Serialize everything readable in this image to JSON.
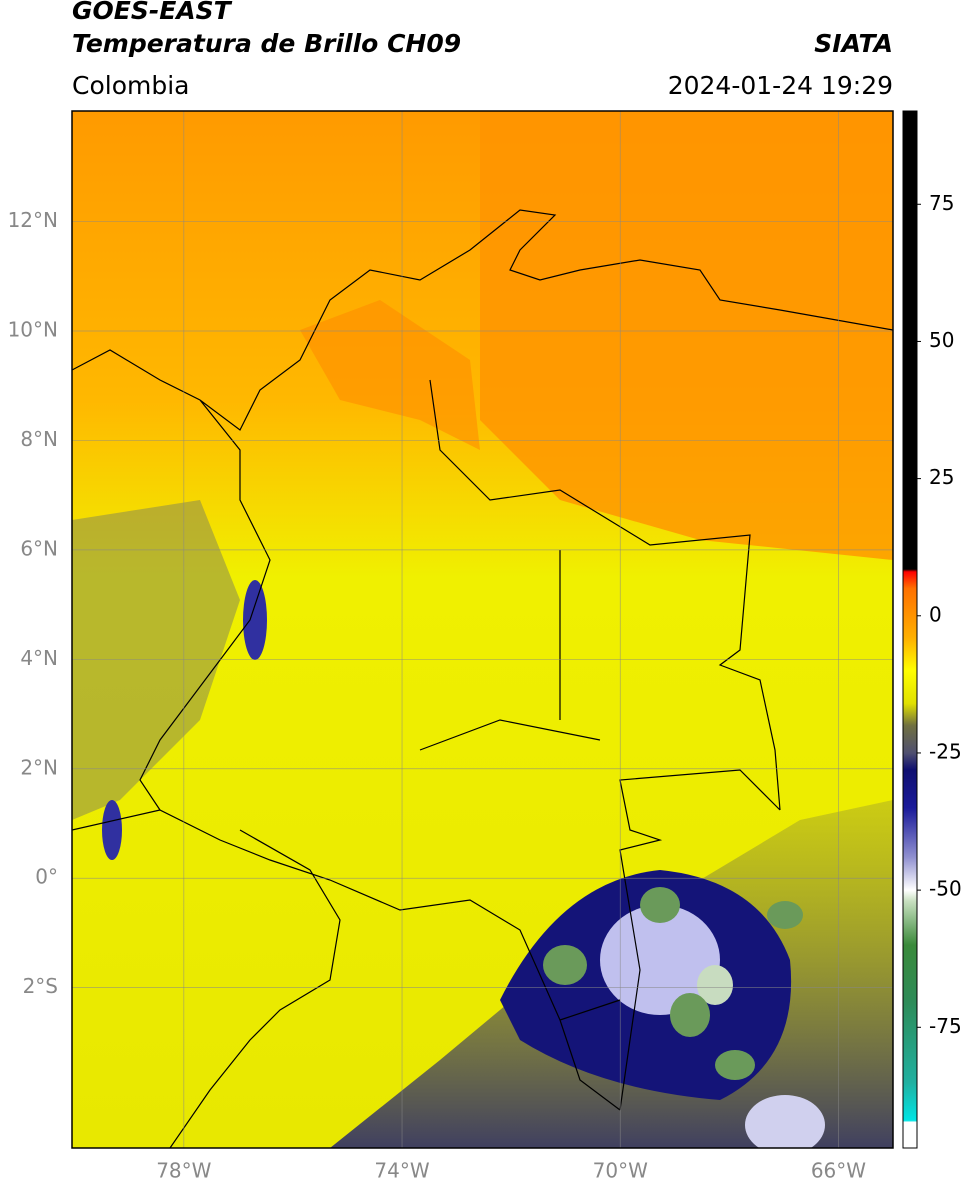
{
  "header": {
    "satellite": "GOES-EAST",
    "product": "Temperatura de Brillo CH09",
    "source": "SIATA",
    "region": "Colombia",
    "datetime": "2024-01-24 19:29"
  },
  "map": {
    "lon_range": [
      -80.05,
      -65.0
    ],
    "lat_range": [
      -4.93,
      14.02
    ],
    "grid": true,
    "lon_ticks": [
      {
        "value": -78,
        "label": "78°W"
      },
      {
        "value": -74,
        "label": "74°W"
      },
      {
        "value": -70,
        "label": "70°W"
      },
      {
        "value": -66,
        "label": "66°W"
      }
    ],
    "lat_ticks": [
      {
        "value": 12,
        "label": "12°N"
      },
      {
        "value": 10,
        "label": "10°N"
      },
      {
        "value": 8,
        "label": "8°N"
      },
      {
        "value": 6,
        "label": "6°N"
      },
      {
        "value": 4,
        "label": "4°N"
      },
      {
        "value": 2,
        "label": "2°N"
      },
      {
        "value": 0,
        "label": "0°"
      },
      {
        "value": -2,
        "label": "2°S"
      }
    ]
  },
  "colorbar": {
    "range": [
      -97,
      92
    ],
    "ticks": [
      75,
      50,
      25,
      0,
      -25,
      -50,
      -75
    ],
    "colormap": [
      {
        "value": -97,
        "color": "#ffffff"
      },
      {
        "value": -92.3,
        "color": "#ffffff"
      },
      {
        "value": -92,
        "color": "#00e5e5"
      },
      {
        "value": -85,
        "color": "#20b0a0"
      },
      {
        "value": -70,
        "color": "#2e8b57"
      },
      {
        "value": -60,
        "color": "#3a8a3a"
      },
      {
        "value": -52,
        "color": "#c8e0c0"
      },
      {
        "value": -50,
        "color": "#ffffff"
      },
      {
        "value": -44,
        "color": "#9090d0"
      },
      {
        "value": -35,
        "color": "#1a1a9a"
      },
      {
        "value": -28,
        "color": "#101070"
      },
      {
        "value": -25,
        "color": "#505070"
      },
      {
        "value": -20,
        "color": "#707040"
      },
      {
        "value": -16,
        "color": "#e0e000"
      },
      {
        "value": -10,
        "color": "#ffff00"
      },
      {
        "value": -4,
        "color": "#ffb000"
      },
      {
        "value": 5,
        "color": "#ff7000"
      },
      {
        "value": 8,
        "color": "#ff0000"
      },
      {
        "value": 8.5,
        "color": "#000000"
      },
      {
        "value": 92,
        "color": "#000000"
      }
    ]
  }
}
